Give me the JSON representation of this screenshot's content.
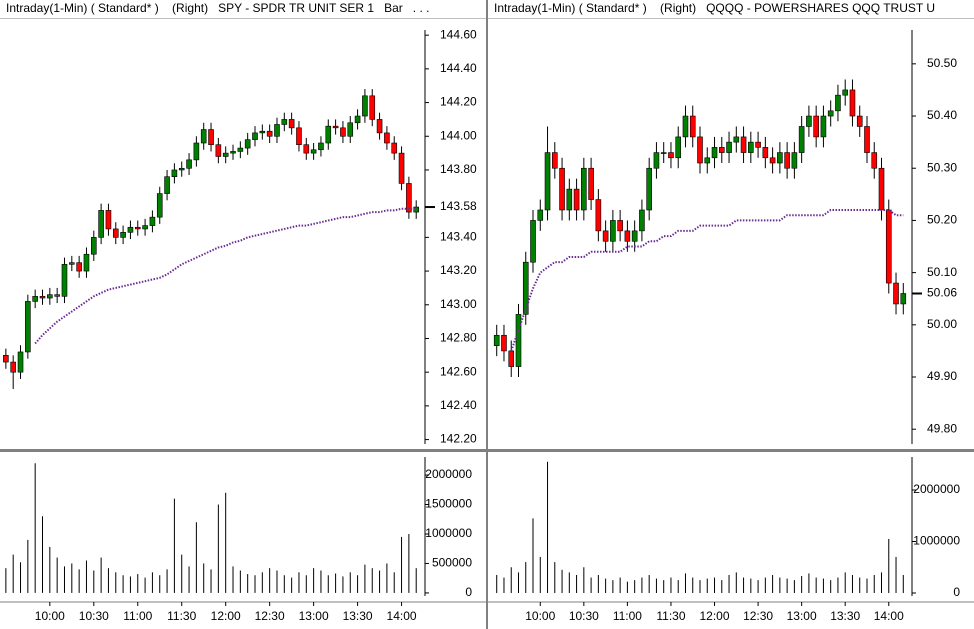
{
  "chart_data": [
    {
      "type": "candlestick",
      "title": "Intraday(1-Min) ( Standard* )    (Right)   SPY - SPDR TR UNIT SER 1   Bar   . . .",
      "x": [
        "09:30",
        "09:35",
        "09:40",
        "09:45",
        "09:50",
        "09:55",
        "10:00",
        "10:05",
        "10:10",
        "10:15",
        "10:20",
        "10:25",
        "10:30",
        "10:35",
        "10:40",
        "10:45",
        "10:50",
        "10:55",
        "11:00",
        "11:05",
        "11:10",
        "11:15",
        "11:20",
        "11:25",
        "11:30",
        "11:35",
        "11:40",
        "11:45",
        "11:50",
        "11:55",
        "12:00",
        "12:05",
        "12:10",
        "12:15",
        "12:20",
        "12:25",
        "12:30",
        "12:35",
        "12:40",
        "12:45",
        "12:50",
        "12:55",
        "13:00",
        "13:05",
        "13:10",
        "13:15",
        "13:20",
        "13:25",
        "13:30",
        "13:35",
        "13:40",
        "13:45",
        "13:50",
        "13:55",
        "14:00",
        "14:05",
        "14:10"
      ],
      "open": [
        142.7,
        142.66,
        142.6,
        142.72,
        143.02,
        143.05,
        143.04,
        143.06,
        143.05,
        143.24,
        143.25,
        143.2,
        143.3,
        143.4,
        143.56,
        143.45,
        143.4,
        143.43,
        143.46,
        143.45,
        143.47,
        143.52,
        143.66,
        143.76,
        143.8,
        143.81,
        143.86,
        143.96,
        144.04,
        143.95,
        143.88,
        143.9,
        143.91,
        143.93,
        143.98,
        144.02,
        144.03,
        144.0,
        144.07,
        144.1,
        144.05,
        143.95,
        143.9,
        143.92,
        143.96,
        144.06,
        144.05,
        144.0,
        144.08,
        144.12,
        144.24,
        144.1,
        144.02,
        143.96,
        143.9,
        143.72,
        143.55
      ],
      "high": [
        142.74,
        142.7,
        142.76,
        143.06,
        143.09,
        143.09,
        143.1,
        143.1,
        143.28,
        143.29,
        143.29,
        143.34,
        143.44,
        143.6,
        143.6,
        143.49,
        143.47,
        143.5,
        143.5,
        143.51,
        143.56,
        143.7,
        143.8,
        143.84,
        143.85,
        143.9,
        144.0,
        144.08,
        144.08,
        143.99,
        143.94,
        143.95,
        143.97,
        144.02,
        144.06,
        144.07,
        144.07,
        144.11,
        144.14,
        144.14,
        144.09,
        143.99,
        143.96,
        144.0,
        144.1,
        144.1,
        144.09,
        144.12,
        144.16,
        144.28,
        144.28,
        144.14,
        144.06,
        144.0,
        143.94,
        143.76,
        143.62
      ],
      "low": [
        142.62,
        142.5,
        142.56,
        142.68,
        142.98,
        143.0,
        143.0,
        143.01,
        143.01,
        143.2,
        143.16,
        143.16,
        143.26,
        143.36,
        143.41,
        143.36,
        143.36,
        143.39,
        143.41,
        143.41,
        143.43,
        143.48,
        143.62,
        143.72,
        143.76,
        143.77,
        143.82,
        143.92,
        143.91,
        143.84,
        143.84,
        143.86,
        143.87,
        143.89,
        143.94,
        143.98,
        143.96,
        143.96,
        144.03,
        144.01,
        143.91,
        143.86,
        143.86,
        143.88,
        143.92,
        144.01,
        143.96,
        143.96,
        144.04,
        144.08,
        144.06,
        143.98,
        143.92,
        143.86,
        143.68,
        143.51,
        143.51
      ],
      "close": [
        142.66,
        142.6,
        142.72,
        143.02,
        143.05,
        143.04,
        143.06,
        143.05,
        143.24,
        143.25,
        143.2,
        143.3,
        143.4,
        143.56,
        143.45,
        143.4,
        143.43,
        143.46,
        143.45,
        143.47,
        143.52,
        143.66,
        143.76,
        143.8,
        143.81,
        143.86,
        143.96,
        144.04,
        143.95,
        143.88,
        143.9,
        143.91,
        143.93,
        143.98,
        144.02,
        144.03,
        144.0,
        144.07,
        144.1,
        144.05,
        143.95,
        143.9,
        143.92,
        143.96,
        144.06,
        144.05,
        144.0,
        144.08,
        144.12,
        144.24,
        144.1,
        144.02,
        143.96,
        143.9,
        143.72,
        143.55,
        143.58
      ],
      "ma_values": [
        null,
        null,
        null,
        null,
        142.77,
        142.82,
        142.86,
        142.9,
        142.93,
        142.96,
        142.99,
        143.02,
        143.05,
        143.07,
        143.09,
        143.1,
        143.11,
        143.12,
        143.13,
        143.14,
        143.15,
        143.16,
        143.18,
        143.21,
        143.24,
        143.26,
        143.28,
        143.3,
        143.32,
        143.34,
        143.35,
        143.37,
        143.38,
        143.4,
        143.41,
        143.42,
        143.43,
        143.44,
        143.45,
        143.46,
        143.47,
        143.47,
        143.48,
        143.49,
        143.5,
        143.51,
        143.52,
        143.52,
        143.53,
        143.54,
        143.55,
        143.55,
        143.56,
        143.56,
        143.57,
        143.57,
        143.57
      ],
      "volume": [
        420000,
        650000,
        520000,
        900000,
        2200000,
        1300000,
        780000,
        600000,
        450000,
        500000,
        400000,
        550000,
        380000,
        600000,
        420000,
        350000,
        300000,
        280000,
        320000,
        260000,
        350000,
        300000,
        400000,
        1600000,
        650000,
        450000,
        1200000,
        500000,
        400000,
        1500000,
        1700000,
        450000,
        380000,
        320000,
        300000,
        350000,
        420000,
        380000,
        300000,
        260000,
        350000,
        300000,
        420000,
        380000,
        300000,
        330000,
        280000,
        350000,
        300000,
        480000,
        420000,
        380000,
        500000,
        350000,
        950000,
        1000000,
        420000
      ],
      "up_color": "#008000",
      "down_color": "#ff0000",
      "ma_color": "#6a2c91",
      "xlim": [
        "09:26",
        "14:16"
      ],
      "xticks": [
        "10:00",
        "10:30",
        "11:00",
        "11:30",
        "12:00",
        "12:30",
        "13:00",
        "13:30",
        "14:00"
      ],
      "ylim": [
        142.15,
        144.69
      ],
      "yticks": [
        {
          "value": 142.2,
          "label": "142.20"
        },
        {
          "value": 142.4,
          "label": "142.40"
        },
        {
          "value": 142.6,
          "label": "142.60"
        },
        {
          "value": 142.8,
          "label": "142.80"
        },
        {
          "value": 143,
          "label": "143.00"
        },
        {
          "value": 143.2,
          "label": "143.20"
        },
        {
          "value": 143.4,
          "label": "143.40"
        },
        {
          "value": 143.8,
          "label": "143.80"
        },
        {
          "value": 144,
          "label": "144.00"
        },
        {
          "value": 144.2,
          "label": "144.20"
        },
        {
          "value": 144.4,
          "label": "144.40"
        },
        {
          "value": 144.6,
          "label": "144.60"
        }
      ],
      "last_tick": {
        "value": 143.58,
        "label": "143.58"
      },
      "volume_ylim": [
        -120000,
        2340000
      ],
      "volume_yticks": [
        0,
        500000,
        1000000,
        1500000,
        2000000
      ]
    },
    {
      "type": "candlestick",
      "title": "Intraday(1-Min) ( Standard* )    (Right)   QQQQ - POWERSHARES QQQ TRUST U",
      "x": [
        "09:30",
        "09:35",
        "09:40",
        "09:45",
        "09:50",
        "09:55",
        "10:00",
        "10:05",
        "10:10",
        "10:15",
        "10:20",
        "10:25",
        "10:30",
        "10:35",
        "10:40",
        "10:45",
        "10:50",
        "10:55",
        "11:00",
        "11:05",
        "11:10",
        "11:15",
        "11:20",
        "11:25",
        "11:30",
        "11:35",
        "11:40",
        "11:45",
        "11:50",
        "11:55",
        "12:00",
        "12:05",
        "12:10",
        "12:15",
        "12:20",
        "12:25",
        "12:30",
        "12:35",
        "12:40",
        "12:45",
        "12:50",
        "12:55",
        "13:00",
        "13:05",
        "13:10",
        "13:15",
        "13:20",
        "13:25",
        "13:30",
        "13:35",
        "13:40",
        "13:45",
        "13:50",
        "13:55",
        "14:00",
        "14:05",
        "14:10"
      ],
      "open": [
        49.96,
        49.98,
        49.95,
        49.92,
        50.02,
        50.12,
        50.2,
        50.22,
        50.33,
        50.3,
        50.22,
        50.26,
        50.22,
        50.3,
        50.24,
        50.18,
        50.16,
        50.2,
        50.18,
        50.16,
        50.18,
        50.22,
        50.3,
        50.33,
        50.33,
        50.32,
        50.36,
        50.4,
        50.36,
        50.31,
        50.32,
        50.34,
        50.33,
        50.35,
        50.36,
        50.33,
        50.35,
        50.34,
        50.32,
        50.31,
        50.33,
        50.3,
        50.33,
        50.38,
        50.4,
        50.36,
        50.4,
        50.41,
        50.44,
        50.45,
        50.4,
        50.38,
        50.33,
        50.3,
        50.22,
        50.08,
        50.04
      ],
      "high": [
        50.0,
        50.0,
        49.97,
        50.04,
        50.14,
        50.22,
        50.24,
        50.38,
        50.35,
        50.32,
        50.28,
        50.28,
        50.32,
        50.32,
        50.26,
        50.2,
        50.22,
        50.22,
        50.2,
        50.2,
        50.24,
        50.32,
        50.35,
        50.35,
        50.35,
        50.38,
        50.42,
        50.42,
        50.38,
        50.34,
        50.36,
        50.36,
        50.37,
        50.38,
        50.38,
        50.37,
        50.37,
        50.36,
        50.34,
        50.35,
        50.35,
        50.35,
        50.4,
        50.42,
        50.42,
        50.42,
        50.43,
        50.46,
        50.47,
        50.47,
        50.42,
        50.4,
        50.35,
        50.32,
        50.24,
        50.1,
        50.08
      ],
      "low": [
        49.94,
        49.93,
        49.9,
        49.9,
        50.0,
        50.1,
        50.18,
        50.2,
        50.28,
        50.2,
        50.2,
        50.2,
        50.2,
        50.22,
        50.16,
        50.14,
        50.14,
        50.16,
        50.14,
        50.14,
        50.16,
        50.2,
        50.28,
        50.31,
        50.3,
        50.3,
        50.34,
        50.34,
        50.29,
        50.29,
        50.3,
        50.31,
        50.31,
        50.33,
        50.31,
        50.31,
        50.32,
        50.3,
        50.29,
        50.29,
        50.28,
        50.28,
        50.31,
        50.36,
        50.34,
        50.34,
        50.38,
        50.39,
        50.42,
        50.38,
        50.36,
        50.31,
        50.28,
        50.2,
        50.06,
        50.02,
        50.02
      ],
      "close": [
        49.98,
        49.95,
        49.92,
        50.02,
        50.12,
        50.2,
        50.22,
        50.33,
        50.3,
        50.22,
        50.26,
        50.22,
        50.3,
        50.24,
        50.18,
        50.16,
        50.2,
        50.18,
        50.16,
        50.18,
        50.22,
        50.3,
        50.33,
        50.33,
        50.32,
        50.36,
        50.4,
        50.36,
        50.31,
        50.32,
        50.34,
        50.33,
        50.35,
        50.36,
        50.33,
        50.35,
        50.34,
        50.32,
        50.31,
        50.33,
        50.3,
        50.33,
        50.38,
        50.4,
        50.36,
        50.4,
        50.41,
        50.44,
        50.45,
        50.4,
        50.38,
        50.33,
        50.3,
        50.22,
        50.08,
        50.04,
        50.06
      ],
      "ma_values": [
        null,
        null,
        49.95,
        49.99,
        50.03,
        50.07,
        50.1,
        50.11,
        50.12,
        50.12,
        50.13,
        50.13,
        50.13,
        50.14,
        50.14,
        50.14,
        50.14,
        50.14,
        50.15,
        50.15,
        50.15,
        50.16,
        50.16,
        50.17,
        50.17,
        50.18,
        50.18,
        50.18,
        50.19,
        50.19,
        50.19,
        50.19,
        50.19,
        50.2,
        50.2,
        50.2,
        50.2,
        50.2,
        50.2,
        50.2,
        50.21,
        50.21,
        50.21,
        50.21,
        50.21,
        50.21,
        50.22,
        50.22,
        50.22,
        50.22,
        50.22,
        50.22,
        50.22,
        50.22,
        50.22,
        50.21,
        50.21
      ],
      "volume": [
        350000,
        300000,
        500000,
        400000,
        600000,
        1450000,
        700000,
        2550000,
        600000,
        450000,
        400000,
        350000,
        500000,
        300000,
        350000,
        280000,
        250000,
        300000,
        220000,
        250000,
        300000,
        350000,
        280000,
        250000,
        300000,
        250000,
        380000,
        300000,
        250000,
        280000,
        300000,
        250000,
        350000,
        400000,
        300000,
        280000,
        250000,
        300000,
        350000,
        300000,
        280000,
        250000,
        330000,
        380000,
        300000,
        280000,
        250000,
        300000,
        400000,
        350000,
        300000,
        280000,
        350000,
        400000,
        1050000,
        700000,
        350000
      ],
      "up_color": "#008000",
      "down_color": "#ff0000",
      "ma_color": "#6a2c91",
      "xlim": [
        "09:24",
        "14:16"
      ],
      "xticks": [
        "10:00",
        "10:30",
        "11:00",
        "11:30",
        "12:00",
        "12:30",
        "13:00",
        "13:30",
        "14:00"
      ],
      "ylim": [
        49.764,
        50.584
      ],
      "yticks": [
        {
          "value": 49.8,
          "label": "49.80"
        },
        {
          "value": 49.9,
          "label": "49.90"
        },
        {
          "value": 50,
          "label": "50.00"
        },
        {
          "value": 50.1,
          "label": "50.10"
        },
        {
          "value": 50.2,
          "label": "50.20"
        },
        {
          "value": 50.3,
          "label": "50.30"
        },
        {
          "value": 50.4,
          "label": "50.40"
        },
        {
          "value": 50.5,
          "label": "50.50"
        }
      ],
      "last_tick": {
        "value": 50.06,
        "label": "50.06"
      },
      "volume_ylim": [
        -136000,
        2680000
      ],
      "volume_yticks": [
        0,
        1000000,
        2000000
      ]
    }
  ]
}
